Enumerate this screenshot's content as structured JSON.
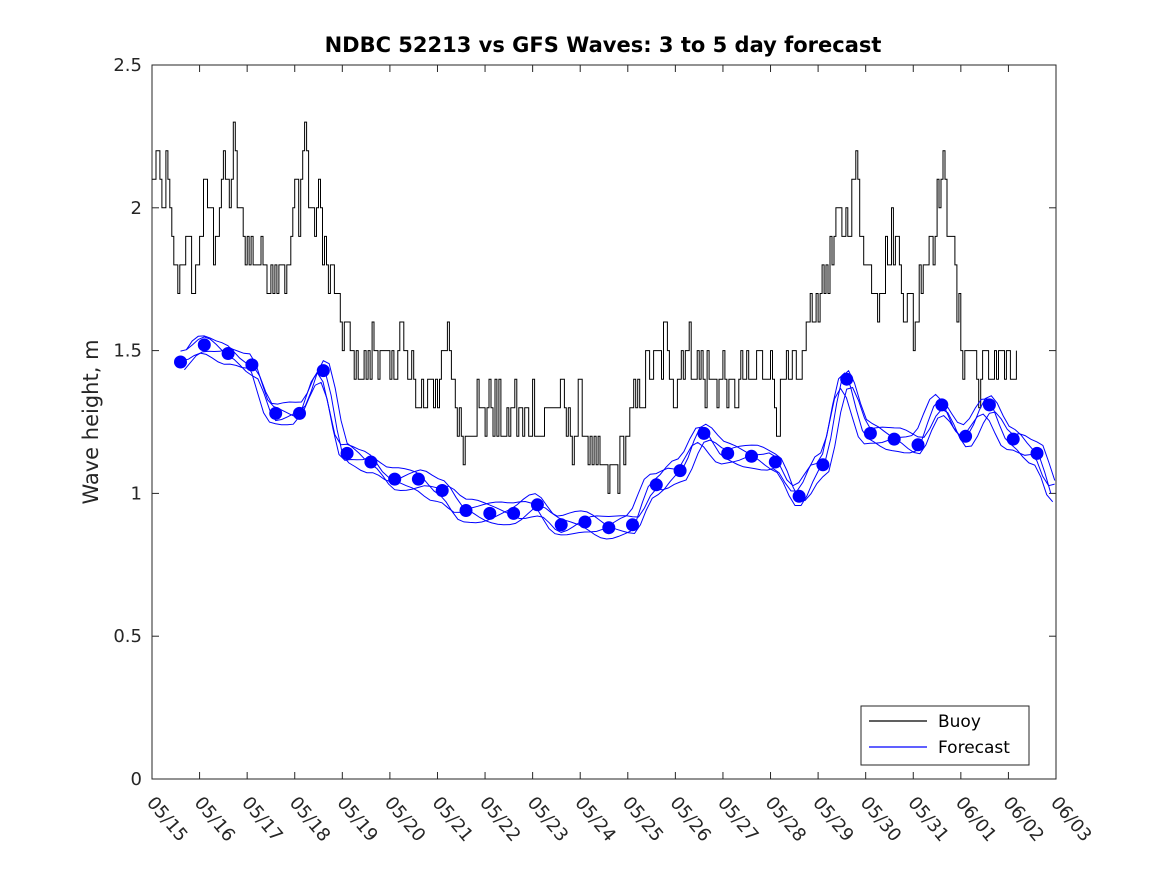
{
  "chart_data": {
    "type": "line",
    "title": "NDBC 52213 vs GFS Waves: 3 to 5 day forecast",
    "xlabel": "",
    "ylabel": "Wave height, m",
    "xlim": [
      "05/15",
      "06/03"
    ],
    "ylim": [
      0,
      2.5
    ],
    "x_ticks": [
      "05/15",
      "05/16",
      "05/17",
      "05/18",
      "05/19",
      "05/20",
      "05/21",
      "05/22",
      "05/23",
      "05/24",
      "05/25",
      "05/26",
      "05/27",
      "05/28",
      "05/29",
      "05/30",
      "05/31",
      "06/01",
      "06/02",
      "06/03"
    ],
    "y_ticks": [
      "0",
      "0.5",
      "1",
      "1.5",
      "2",
      "2.5"
    ],
    "grid": false,
    "legend_position": "bottom-right",
    "legend": [
      {
        "name": "Buoy",
        "color": "#000000"
      },
      {
        "name": "Forecast",
        "color": "#0000ff"
      }
    ],
    "series": [
      {
        "name": "Buoy",
        "color": "#000000",
        "x_days": [
          0.0,
          0.1,
          0.2,
          0.3,
          0.4,
          0.5,
          0.6,
          0.7,
          0.8,
          0.9,
          1.0,
          1.1,
          1.2,
          1.3,
          1.4,
          1.5,
          1.6,
          1.7,
          1.8,
          1.9,
          2.0,
          2.1,
          2.2,
          2.3,
          2.4,
          2.5,
          2.6,
          2.7,
          2.8,
          2.9,
          3.0,
          3.1,
          3.2,
          3.3,
          3.4,
          3.5,
          3.6,
          3.7,
          3.8,
          3.9,
          4.0,
          4.2,
          4.4,
          4.6,
          4.8,
          5.0,
          5.2,
          5.4,
          5.6,
          5.8,
          6.0,
          6.2,
          6.4,
          6.6,
          6.8,
          7.0,
          7.2,
          7.4,
          7.6,
          7.8,
          8.0,
          8.2,
          8.4,
          8.6,
          8.8,
          9.0,
          9.2,
          9.4,
          9.6,
          9.8,
          10.0,
          10.2,
          10.4,
          10.6,
          10.8,
          11.0,
          11.2,
          11.4,
          11.6,
          11.8,
          12.0,
          12.2,
          12.4,
          12.6,
          12.8,
          13.0,
          13.2,
          13.4,
          13.6,
          13.8,
          14.0,
          14.2,
          14.4,
          14.6,
          14.8,
          15.0,
          15.2,
          15.4,
          15.6,
          15.8,
          16.0,
          16.2,
          16.4,
          16.6,
          16.8,
          17.0,
          17.2,
          17.4,
          17.6,
          17.8,
          18.0,
          18.2
        ],
        "values": [
          2.1,
          2.2,
          2.0,
          2.1,
          1.9,
          1.7,
          1.8,
          1.9,
          1.8,
          1.7,
          1.9,
          2.0,
          2.0,
          1.9,
          2.0,
          2.1,
          2.0,
          2.2,
          2.0,
          1.9,
          1.9,
          1.8,
          1.8,
          1.9,
          1.7,
          1.8,
          1.8,
          1.9,
          1.7,
          1.8,
          2.1,
          2.0,
          2.3,
          2.0,
          1.9,
          2.0,
          1.9,
          1.7,
          1.8,
          1.6,
          1.6,
          1.5,
          1.4,
          1.5,
          1.5,
          1.4,
          1.6,
          1.4,
          1.3,
          1.4,
          1.4,
          1.5,
          1.3,
          1.2,
          1.3,
          1.3,
          1.3,
          1.2,
          1.3,
          1.2,
          1.3,
          1.2,
          1.3,
          1.3,
          1.2,
          1.3,
          1.1,
          1.1,
          1.0,
          1.1,
          1.2,
          1.3,
          1.4,
          1.5,
          1.5,
          1.4,
          1.5,
          1.5,
          1.4,
          1.4,
          1.4,
          1.3,
          1.4,
          1.4,
          1.5,
          1.4,
          1.3,
          1.4,
          1.4,
          1.6,
          1.7,
          1.8,
          1.9,
          2.0,
          2.1,
          1.8,
          1.7,
          1.8,
          1.9,
          1.7,
          1.6,
          1.8,
          1.9,
          2.1,
          1.9,
          1.5,
          1.5,
          1.4,
          1.4,
          1.5,
          1.4,
          1.4
        ]
      },
      {
        "name": "Forecast",
        "color": "#0000ff",
        "markers_x_days": [
          0.6,
          1.1,
          1.6,
          2.1,
          2.6,
          3.1,
          3.6,
          4.1,
          4.6,
          5.1,
          5.6,
          6.1,
          6.6,
          7.1,
          7.6,
          8.1,
          8.6,
          9.1,
          9.6,
          10.1,
          10.6,
          11.1,
          11.6,
          12.1,
          12.6,
          13.1,
          13.6,
          14.1,
          14.6,
          15.1,
          15.6,
          16.1,
          16.6,
          17.1,
          17.6
        ],
        "markers_values": [
          1.46,
          1.52,
          1.49,
          1.45,
          1.28,
          1.28,
          1.43,
          1.14,
          1.11,
          1.05,
          1.05,
          1.01,
          0.94,
          0.93,
          0.93,
          0.96,
          0.89,
          0.9,
          0.88,
          0.89,
          1.03,
          1.08,
          1.21,
          1.14,
          1.13,
          1.11,
          0.99,
          1.1,
          1.4,
          1.21,
          1.19,
          1.17,
          1.31,
          1.2,
          1.31
        ],
        "markers_values_tail": [
          1.19,
          1.14
        ]
      }
    ]
  }
}
